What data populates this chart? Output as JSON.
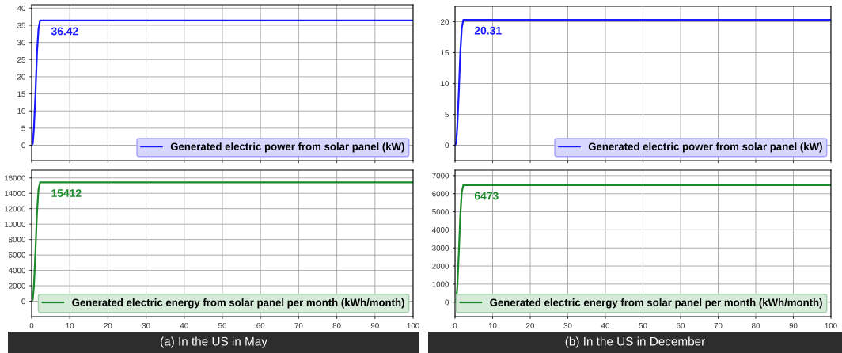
{
  "chart_data": [
    {
      "type": "line",
      "x": [
        0,
        0.3,
        0.6,
        1,
        1.4,
        1.8,
        2.2,
        100
      ],
      "series": [
        {
          "name": "Generated electric power from solar panel (kW)",
          "color": "#1a1aff",
          "values": [
            0,
            0.5,
            5,
            15,
            27,
            34,
            36.42,
            36.42
          ],
          "value_labels": [
            null,
            null,
            null,
            null,
            null,
            null,
            "36.42",
            null
          ]
        }
      ],
      "xlim": [
        0,
        100
      ],
      "xticks": [
        0,
        10,
        20,
        30,
        40,
        50,
        60,
        70,
        80,
        90,
        100
      ],
      "ylim": [
        -4.5,
        41
      ],
      "yticks": [
        0,
        5,
        10,
        15,
        20,
        25,
        30,
        35,
        40
      ],
      "grid": true,
      "legend": "bottom right",
      "tick_labels": "y"
    },
    {
      "type": "line",
      "x": [
        0,
        0.3,
        0.6,
        1,
        1.4,
        1.8,
        2.2,
        100
      ],
      "series": [
        {
          "name": "Generated electric power from solar panel (kW)",
          "color": "#1a1aff",
          "values": [
            0,
            0.3,
            3,
            8.5,
            15,
            19,
            20.31,
            20.31
          ],
          "value_labels": [
            null,
            null,
            null,
            null,
            null,
            null,
            "20.31",
            null
          ]
        }
      ],
      "xlim": [
        0,
        100
      ],
      "xticks": [
        0,
        10,
        20,
        30,
        40,
        50,
        60,
        70,
        80,
        90,
        100
      ],
      "ylim": [
        -2.5,
        22.5
      ],
      "yticks": [
        0,
        5,
        10,
        15,
        20
      ],
      "grid": true,
      "legend": "bottom right",
      "tick_labels": "y"
    },
    {
      "type": "line",
      "x": [
        0,
        0.3,
        0.6,
        1,
        1.4,
        1.8,
        2.2,
        100
      ],
      "series": [
        {
          "name": "Generated electric energy from solar panel per month (kWh/month)",
          "color": "#1a8a2a",
          "values": [
            0,
            200,
            2000,
            6500,
            11500,
            14500,
            15412,
            15412
          ],
          "value_labels": [
            null,
            null,
            null,
            null,
            null,
            null,
            "15412",
            null
          ]
        }
      ],
      "xlim": [
        0,
        100
      ],
      "xticks": [
        0,
        10,
        20,
        30,
        40,
        50,
        60,
        70,
        80,
        90,
        100
      ],
      "ylim": [
        -2000,
        17000
      ],
      "yticks": [
        0,
        2000,
        4000,
        6000,
        8000,
        10000,
        12000,
        14000,
        16000
      ],
      "grid": true,
      "legend": "bottom right",
      "annotations": [
        "(a) In the US in May"
      ]
    },
    {
      "type": "line",
      "x": [
        0,
        0.3,
        0.6,
        1,
        1.4,
        1.8,
        2.2,
        100
      ],
      "series": [
        {
          "name": "Generated electric energy from solar panel per month (kWh/month)",
          "color": "#1a8a2a",
          "values": [
            0,
            80,
            800,
            2700,
            4800,
            6100,
            6473,
            6473
          ],
          "value_labels": [
            null,
            null,
            null,
            null,
            null,
            null,
            "6473",
            null
          ]
        }
      ],
      "xlim": [
        0,
        100
      ],
      "xticks": [
        0,
        10,
        20,
        30,
        40,
        50,
        60,
        70,
        80,
        90,
        100
      ],
      "ylim": [
        -800,
        7300
      ],
      "yticks": [
        0,
        1000,
        2000,
        3000,
        4000,
        5000,
        6000,
        7000
      ],
      "grid": true,
      "legend": "bottom right",
      "annotations": [
        "(b) In the US in December"
      ]
    }
  ]
}
